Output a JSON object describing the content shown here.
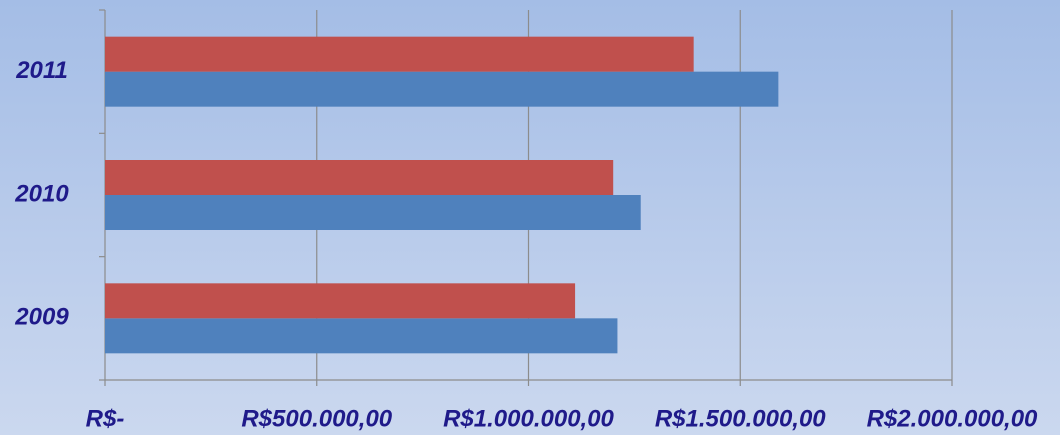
{
  "chart_data": {
    "type": "barh",
    "categories": [
      "2009",
      "2010",
      "2011"
    ],
    "series": [
      {
        "color": "#4f81bd",
        "values": [
          1210000,
          1265000,
          1590000
        ]
      },
      {
        "color": "#c0504d",
        "values": [
          1110000,
          1200000,
          1390000
        ]
      }
    ],
    "xlim": [
      0,
      2000000
    ],
    "xticks": [
      {
        "value": 0,
        "label": "R$-"
      },
      {
        "value": 500000,
        "label": "R$500.000,00"
      },
      {
        "value": 1000000,
        "label": "R$1.000.000,00"
      },
      {
        "value": 1500000,
        "label": "R$1.500.000,00"
      },
      {
        "value": 2000000,
        "label": "R$2.000.000,00"
      }
    ],
    "grid": true
  }
}
